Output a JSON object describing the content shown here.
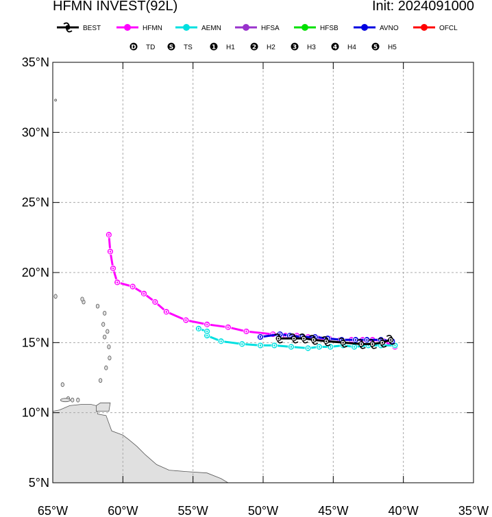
{
  "header": {
    "title": "HFMN INVEST(92L)",
    "init": "Init: 2024091000"
  },
  "legend": {
    "models": [
      {
        "name": "BEST",
        "color": "#000000"
      },
      {
        "name": "HFMN",
        "color": "#ff00ff"
      },
      {
        "name": "AEMN",
        "color": "#00e0e0"
      },
      {
        "name": "HFSA",
        "color": "#9932cc"
      },
      {
        "name": "HFSB",
        "color": "#00e000"
      },
      {
        "name": "AVNO",
        "color": "#0000e0"
      },
      {
        "name": "OFCL",
        "color": "#ff0000"
      }
    ],
    "intensity": [
      {
        "symbol": "D",
        "label": "TD"
      },
      {
        "symbol": "S",
        "label": "TS"
      },
      {
        "symbol": "1",
        "label": "H1"
      },
      {
        "symbol": "2",
        "label": "H2"
      },
      {
        "symbol": "3",
        "label": "H3"
      },
      {
        "symbol": "4",
        "label": "H4"
      },
      {
        "symbol": "5",
        "label": "H5"
      }
    ]
  },
  "chart_data": {
    "type": "line",
    "map": "track-map",
    "xlim": [
      -65,
      -35
    ],
    "ylim": [
      5,
      35
    ],
    "x_ticks": [
      -65,
      -60,
      -55,
      -50,
      -45,
      -40,
      -35
    ],
    "x_tick_labels": [
      "65°W",
      "60°W",
      "55°W",
      "50°W",
      "45°W",
      "40°W",
      "35°W"
    ],
    "y_ticks": [
      5,
      10,
      15,
      20,
      25,
      30,
      35
    ],
    "y_tick_labels": [
      "5°N",
      "10°N",
      "15°N",
      "20°N",
      "25°N",
      "30°N",
      "35°N"
    ],
    "grid": true,
    "series": [
      {
        "name": "HFMN",
        "color": "#ff00ff",
        "points": [
          [
            -40.6,
            14.7
          ],
          [
            -41.4,
            15.1
          ],
          [
            -42.2,
            15.2
          ],
          [
            -42.9,
            15.2
          ],
          [
            -43.7,
            15.2
          ],
          [
            -44.5,
            15.2
          ],
          [
            -45.3,
            15.3
          ],
          [
            -46.1,
            15.3
          ],
          [
            -46.8,
            15.4
          ],
          [
            -47.6,
            15.5
          ],
          [
            -48.4,
            15.5
          ],
          [
            -49.3,
            15.6
          ],
          [
            -51.2,
            15.8
          ],
          [
            -52.5,
            16.1
          ],
          [
            -54,
            16.3
          ],
          [
            -55.5,
            16.6
          ],
          [
            -56.9,
            17.2
          ],
          [
            -57.7,
            17.9
          ],
          [
            -58.5,
            18.5
          ],
          [
            -59.3,
            19
          ],
          [
            -60.4,
            19.3
          ],
          [
            -60.7,
            20.3
          ],
          [
            -60.9,
            21.5
          ],
          [
            -61,
            22.7
          ]
        ]
      },
      {
        "name": "AEMN",
        "color": "#00e0e0",
        "points": [
          [
            -40.6,
            14.8
          ],
          [
            -41.6,
            14.8
          ],
          [
            -42.5,
            14.8
          ],
          [
            -43.5,
            14.7
          ],
          [
            -44.3,
            14.8
          ],
          [
            -45.2,
            14.7
          ],
          [
            -46,
            14.7
          ],
          [
            -46.8,
            14.6
          ],
          [
            -48,
            14.7
          ],
          [
            -49.2,
            14.8
          ],
          [
            -50.2,
            14.8
          ],
          [
            -51.5,
            14.9
          ],
          [
            -53,
            15.1
          ],
          [
            -54,
            15.5
          ],
          [
            -54,
            15.8
          ],
          [
            -54.6,
            16
          ]
        ]
      },
      {
        "name": "AVNO",
        "color": "#0000e0",
        "points": [
          [
            -40.8,
            15.1
          ],
          [
            -41.6,
            15.2
          ],
          [
            -42.6,
            15.2
          ],
          [
            -43.4,
            15.2
          ],
          [
            -44.4,
            15.2
          ],
          [
            -45.4,
            15.3
          ],
          [
            -46.3,
            15.4
          ],
          [
            -47.2,
            15.4
          ],
          [
            -48.1,
            15.5
          ],
          [
            -48.8,
            15.6
          ],
          [
            -50.2,
            15.4
          ]
        ]
      },
      {
        "name": "BEST",
        "color": "#000000",
        "points": [
          [
            -40.9,
            15.2
          ],
          [
            -41.5,
            15.0
          ],
          [
            -42.2,
            14.9
          ],
          [
            -43.0,
            14.9
          ],
          [
            -44.3,
            15.0
          ],
          [
            -45.5,
            15.1
          ],
          [
            -46.4,
            15.2
          ],
          [
            -47.1,
            15.3
          ],
          [
            -47.8,
            15.3
          ],
          [
            -48.9,
            15.3
          ]
        ]
      }
    ]
  }
}
